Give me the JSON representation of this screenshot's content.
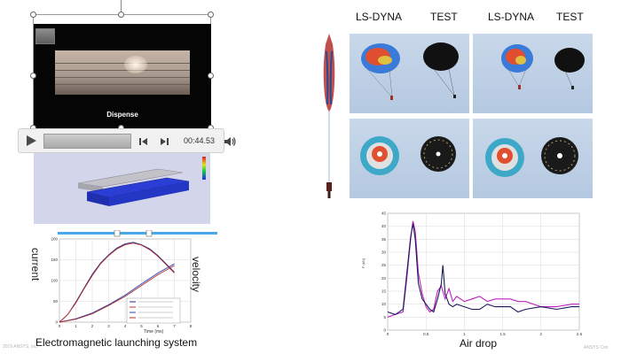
{
  "video": {
    "caption": "Dispense"
  },
  "media_controls": {
    "time": "00:44.53"
  },
  "em_chart": {
    "label_left": "current",
    "label_right": "velocity",
    "xlabel": "Time (ms)",
    "title": "Electromagnetic launching system"
  },
  "parachute": {
    "headers": [
      "LS-DYNA",
      "TEST",
      "LS-DYNA",
      "TEST"
    ]
  },
  "airdrop_chart": {
    "ylabel": "F (kN)",
    "title": "Air drop"
  },
  "footer": {
    "left": "2019 ANSYS, Inc.",
    "right": "ANSYS Con"
  },
  "chart_data": [
    {
      "type": "line",
      "title": "",
      "xlabel": "Time (ms)",
      "ylabel": "current",
      "y2label": "velocity",
      "xlim": [
        0,
        8
      ],
      "ylim": [
        0,
        200
      ],
      "x_ticks": [
        0,
        1,
        2,
        3,
        4,
        5,
        6,
        7,
        8
      ],
      "y_ticks": [
        0,
        50,
        100,
        150,
        200
      ],
      "grid": true,
      "legend": "bottom-right",
      "series": [
        {
          "color": "#1a2a8a",
          "x": [
            0,
            0.5,
            1,
            1.5,
            2,
            2.5,
            3,
            3.5,
            4,
            4.5,
            5,
            5.5,
            6,
            6.5,
            7
          ],
          "values": [
            0,
            18,
            48,
            82,
            115,
            142,
            162,
            178,
            188,
            192,
            186,
            176,
            160,
            140,
            120
          ]
        },
        {
          "color": "#c03030",
          "x": [
            0,
            0.5,
            1,
            1.5,
            2,
            2.5,
            3,
            3.5,
            4,
            4.5,
            5,
            5.5,
            6,
            6.5,
            7
          ],
          "values": [
            0,
            18,
            46,
            80,
            112,
            140,
            160,
            176,
            186,
            190,
            185,
            174,
            158,
            138,
            118
          ]
        },
        {
          "color": "#3040b0",
          "x": [
            0,
            1,
            2,
            3,
            4,
            5,
            6,
            7
          ],
          "values": [
            0,
            8,
            22,
            42,
            65,
            92,
            118,
            140
          ]
        },
        {
          "color": "#b03030",
          "x": [
            0,
            1,
            2,
            3,
            4,
            5,
            6,
            7
          ],
          "values": [
            0,
            7,
            20,
            40,
            62,
            88,
            114,
            136
          ]
        }
      ]
    },
    {
      "type": "line",
      "title": "",
      "xlabel": "",
      "ylabel": "F (kN)",
      "xlim": [
        0,
        2.5
      ],
      "ylim": [
        0,
        45
      ],
      "x_ticks": [
        0,
        0.5,
        1,
        1.5,
        2,
        2.5
      ],
      "y_ticks": [
        0,
        5,
        10,
        15,
        20,
        25,
        30,
        35,
        40,
        45
      ],
      "grid": true,
      "series": [
        {
          "color": "#c020c0",
          "x": [
            0,
            0.1,
            0.2,
            0.25,
            0.3,
            0.33,
            0.36,
            0.4,
            0.45,
            0.5,
            0.55,
            0.6,
            0.65,
            0.7,
            0.75,
            0.8,
            0.85,
            0.9,
            1.0,
            1.1,
            1.2,
            1.3,
            1.4,
            1.5,
            1.6,
            1.7,
            1.8,
            2.0,
            2.2,
            2.4,
            2.5
          ],
          "values": [
            5,
            6,
            7,
            20,
            35,
            42,
            38,
            22,
            14,
            9,
            7,
            8,
            15,
            17,
            12,
            16,
            11,
            13,
            11,
            12,
            13,
            11,
            12,
            12,
            12,
            11,
            11,
            9,
            9,
            10,
            10
          ]
        },
        {
          "color": "#1a1a5a",
          "x": [
            0,
            0.1,
            0.2,
            0.25,
            0.3,
            0.33,
            0.36,
            0.4,
            0.45,
            0.5,
            0.55,
            0.6,
            0.65,
            0.7,
            0.72,
            0.75,
            0.8,
            0.85,
            0.9,
            1.0,
            1.1,
            1.2,
            1.3,
            1.4,
            1.5,
            1.6,
            1.7,
            1.8,
            2.0,
            2.2,
            2.4,
            2.5
          ],
          "values": [
            7,
            6,
            8,
            22,
            36,
            41,
            35,
            18,
            12,
            10,
            8,
            7,
            12,
            18,
            25,
            14,
            10,
            9,
            10,
            9,
            8,
            8,
            10,
            9,
            9,
            9,
            7,
            8,
            9,
            8,
            9,
            9
          ]
        }
      ]
    }
  ]
}
